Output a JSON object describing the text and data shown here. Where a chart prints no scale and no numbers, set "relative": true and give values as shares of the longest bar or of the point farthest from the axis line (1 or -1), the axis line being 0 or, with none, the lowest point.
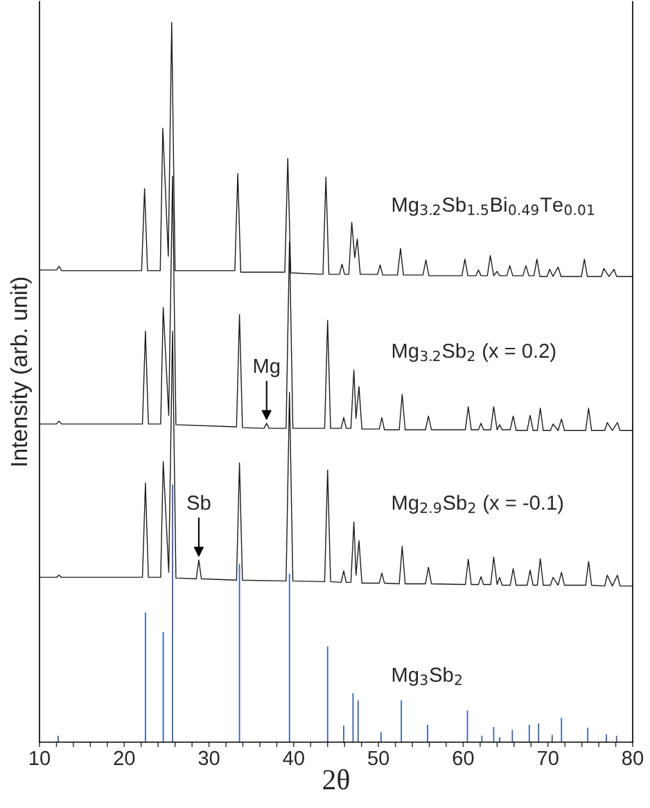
{
  "chart_data": {
    "type": "line",
    "relative": true,
    "xlabel": "2θ",
    "ylabel": "Intensity (arb. unit)",
    "xlim": [
      10,
      80
    ],
    "xticks": [
      10,
      {
        "value": 12,
        "label": null
      },
      {
        "value": 14,
        "label": null
      },
      {
        "value": 16,
        "label": null
      },
      {
        "value": 18,
        "label": null
      },
      20,
      {
        "value": 22,
        "label": null
      },
      {
        "value": 24,
        "label": null
      },
      {
        "value": 26,
        "label": null
      },
      {
        "value": 28,
        "label": null
      },
      30,
      {
        "value": 32,
        "label": null
      },
      {
        "value": 34,
        "label": null
      },
      {
        "value": 36,
        "label": null
      },
      {
        "value": 38,
        "label": null
      },
      40,
      {
        "value": 42,
        "label": null
      },
      {
        "value": 44,
        "label": null
      },
      {
        "value": 46,
        "label": null
      },
      {
        "value": 48,
        "label": null
      },
      50,
      {
        "value": 52,
        "label": null
      },
      {
        "value": 54,
        "label": null
      },
      {
        "value": 56,
        "label": null
      },
      {
        "value": 58,
        "label": null
      },
      60,
      {
        "value": 62,
        "label": null
      },
      {
        "value": 64,
        "label": null
      },
      {
        "value": 66,
        "label": null
      },
      {
        "value": 68,
        "label": null
      },
      70,
      {
        "value": 72,
        "label": null
      },
      {
        "value": 74,
        "label": null
      },
      {
        "value": 76,
        "label": null
      },
      {
        "value": 78,
        "label": null
      },
      80
    ],
    "tick_labels": "x",
    "grid": false,
    "legend": false,
    "marker": "none",
    "line_style": "solid",
    "series": [
      {
        "name": "Mg$_{3.2}$Sb$_{1.5}$Bi$_{0.49}$Te$_{0.01}$",
        "color": "#1a1a1a",
        "x": [
          10,
          12.0,
          12.3,
          12.6,
          22.05,
          22.4,
          22.75,
          24.25,
          24.55,
          25.2,
          25.6,
          26.0,
          33.05,
          33.4,
          33.75,
          38.95,
          39.3,
          39.65,
          43.45,
          43.8,
          44.15,
          45.4,
          45.7,
          46.0,
          46.5,
          46.85,
          47.2,
          47.5,
          47.85,
          49.9,
          50.2,
          50.5,
          52.25,
          52.6,
          52.95,
          55.25,
          55.6,
          55.95,
          59.85,
          60.2,
          60.55,
          61.5,
          61.8,
          62.1,
          62.85,
          63.2,
          63.6,
          64.0,
          64.3,
          65.15,
          65.5,
          65.85,
          67.05,
          67.4,
          67.75,
          68.35,
          68.7,
          69.05,
          69.9,
          70.2,
          70.6,
          71.2,
          71.55,
          73.95,
          74.3,
          74.65,
          76.3,
          76.6,
          77.2,
          77.8,
          78.1,
          80
        ],
        "values": [
          0.656,
          0.656,
          0.661,
          0.655,
          0.655,
          0.769,
          0.655,
          0.655,
          0.853,
          0.675,
          1.0,
          0.655,
          0.655,
          0.79,
          0.653,
          0.653,
          0.811,
          0.652,
          0.65,
          0.785,
          0.65,
          0.65,
          0.664,
          0.65,
          0.65,
          0.722,
          0.673,
          0.699,
          0.65,
          0.65,
          0.663,
          0.649,
          0.649,
          0.686,
          0.649,
          0.649,
          0.67,
          0.648,
          0.648,
          0.671,
          0.648,
          0.648,
          0.656,
          0.648,
          0.648,
          0.676,
          0.648,
          0.654,
          0.648,
          0.648,
          0.662,
          0.648,
          0.648,
          0.662,
          0.648,
          0.648,
          0.671,
          0.647,
          0.647,
          0.657,
          0.647,
          0.66,
          0.647,
          0.647,
          0.671,
          0.647,
          0.647,
          0.658,
          0.647,
          0.657,
          0.647,
          0.647
        ]
      },
      {
        "name": "Mg$_{3.2}$Sb$_{2}$ (x = 0.2)",
        "color": "#1a1a1a",
        "x": [
          10,
          12.0,
          12.3,
          12.6,
          22.15,
          22.5,
          22.85,
          24.3,
          24.6,
          25.25,
          25.7,
          26.1,
          33.25,
          33.6,
          33.95,
          36.5,
          36.8,
          37.1,
          39.1,
          39.5,
          39.9,
          43.65,
          44.0,
          44.35,
          45.6,
          45.9,
          46.2,
          46.75,
          47.1,
          47.35,
          47.7,
          48.05,
          50.1,
          50.4,
          50.7,
          52.45,
          52.8,
          53.15,
          55.55,
          55.9,
          56.25,
          60.25,
          60.6,
          60.95,
          61.8,
          62.1,
          62.4,
          63.25,
          63.6,
          64.0,
          64.3,
          64.6,
          65.55,
          65.9,
          66.25,
          67.55,
          67.9,
          68.25,
          68.75,
          69.1,
          69.45,
          70.3,
          70.6,
          71.2,
          71.6,
          71.95,
          74.45,
          74.8,
          75.15,
          76.7,
          77.0,
          77.6,
          78.2,
          78.5,
          80
        ],
        "values": [
          0.442,
          0.442,
          0.446,
          0.442,
          0.442,
          0.571,
          0.442,
          0.442,
          0.604,
          0.454,
          0.786,
          0.441,
          0.438,
          0.594,
          0.437,
          0.436,
          0.443,
          0.436,
          0.436,
          0.695,
          0.436,
          0.436,
          0.586,
          0.436,
          0.436,
          0.451,
          0.436,
          0.436,
          0.517,
          0.45,
          0.494,
          0.435,
          0.435,
          0.451,
          0.434,
          0.434,
          0.483,
          0.434,
          0.434,
          0.453,
          0.434,
          0.434,
          0.466,
          0.434,
          0.434,
          0.443,
          0.434,
          0.434,
          0.466,
          0.434,
          0.441,
          0.434,
          0.434,
          0.453,
          0.433,
          0.433,
          0.454,
          0.433,
          0.433,
          0.464,
          0.433,
          0.433,
          0.442,
          0.433,
          0.449,
          0.433,
          0.433,
          0.464,
          0.433,
          0.433,
          0.444,
          0.433,
          0.444,
          0.433,
          0.433
        ]
      },
      {
        "name": "Mg$_{2.9}$Sb$_{2}$ (x = -0.1)",
        "color": "#1a1a1a",
        "x": [
          10,
          12.0,
          12.3,
          12.6,
          22.15,
          22.5,
          22.85,
          24.3,
          24.6,
          25.25,
          25.7,
          26.1,
          28.5,
          28.8,
          29.1,
          33.25,
          33.6,
          33.95,
          39.1,
          39.5,
          39.9,
          43.65,
          44.0,
          44.35,
          45.6,
          45.9,
          46.2,
          46.75,
          47.1,
          47.35,
          47.7,
          48.05,
          50.1,
          50.4,
          50.7,
          52.45,
          52.8,
          53.15,
          55.55,
          55.9,
          56.25,
          60.25,
          60.6,
          60.95,
          61.8,
          62.1,
          62.4,
          63.25,
          63.6,
          64.0,
          64.3,
          64.6,
          65.55,
          65.9,
          66.25,
          67.55,
          67.9,
          68.25,
          68.75,
          69.1,
          69.45,
          70.3,
          70.6,
          71.2,
          71.6,
          71.95,
          74.45,
          74.8,
          75.15,
          76.7,
          77.0,
          77.6,
          78.2,
          78.5,
          80
        ],
        "values": [
          0.229,
          0.229,
          0.232,
          0.229,
          0.229,
          0.36,
          0.229,
          0.229,
          0.39,
          0.236,
          0.571,
          0.228,
          0.227,
          0.253,
          0.227,
          0.225,
          0.388,
          0.225,
          0.224,
          0.486,
          0.224,
          0.223,
          0.378,
          0.223,
          0.222,
          0.238,
          0.222,
          0.222,
          0.306,
          0.232,
          0.28,
          0.221,
          0.221,
          0.235,
          0.221,
          0.22,
          0.272,
          0.22,
          0.22,
          0.243,
          0.22,
          0.219,
          0.254,
          0.219,
          0.219,
          0.23,
          0.219,
          0.219,
          0.257,
          0.219,
          0.229,
          0.218,
          0.218,
          0.241,
          0.218,
          0.218,
          0.239,
          0.218,
          0.218,
          0.255,
          0.218,
          0.218,
          0.229,
          0.218,
          0.236,
          0.218,
          0.218,
          0.251,
          0.218,
          0.217,
          0.232,
          0.217,
          0.232,
          0.217,
          0.217
        ]
      },
      {
        "name": "Mg$_{3}$Sb$_{2}$",
        "color": "#3b63ad",
        "type": "bar",
        "x": [
          12.2,
          22.5,
          24.6,
          25.7,
          33.6,
          39.5,
          44.0,
          45.9,
          47.0,
          47.6,
          50.3,
          52.7,
          55.8,
          60.5,
          62.2,
          63.6,
          64.3,
          65.8,
          67.8,
          68.9,
          70.5,
          71.6,
          74.7,
          76.9,
          78.1
        ],
        "values": [
          0.009,
          0.18,
          0.153,
          0.358,
          0.248,
          0.234,
          0.133,
          0.023,
          0.068,
          0.058,
          0.014,
          0.058,
          0.024,
          0.044,
          0.009,
          0.021,
          0.007,
          0.017,
          0.024,
          0.026,
          0.01,
          0.034,
          0.02,
          0.011,
          0.009
        ]
      }
    ],
    "annotations": [
      {
        "text": "Sb",
        "x": 28.8,
        "y": 0.253
      },
      {
        "text": "Mg",
        "x": 36.8,
        "y": 0.443
      }
    ]
  }
}
